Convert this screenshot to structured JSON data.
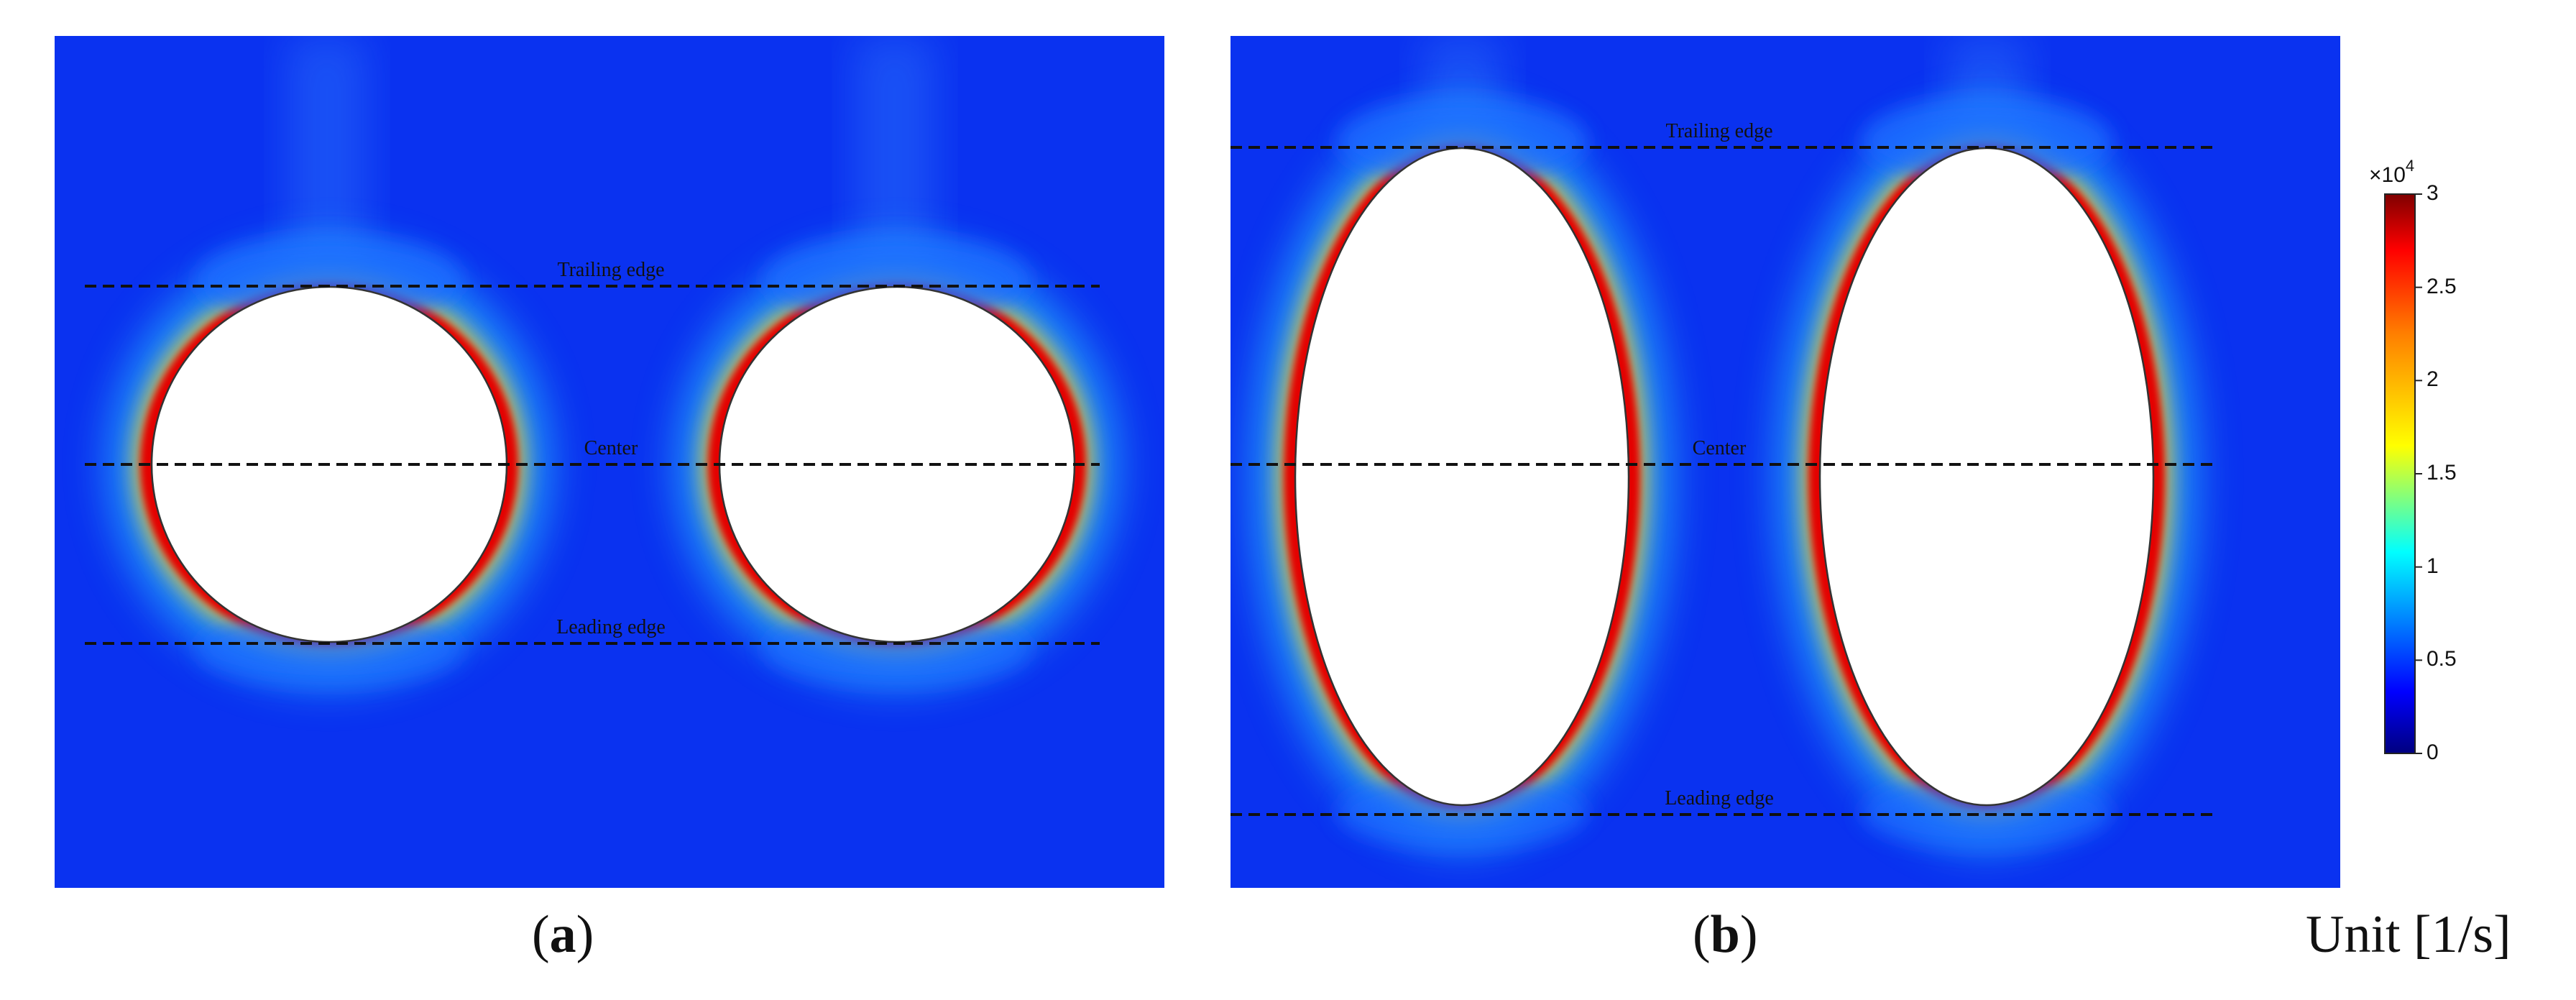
{
  "chart_data": {
    "type": "heatmap",
    "colorscale": "jet",
    "colors": {
      "field_base": "#0a32f0",
      "obstacle": "#ffffff",
      "guide_line": "#111111"
    },
    "colorbar": {
      "min": 0,
      "max": 30000,
      "exponent_label": "×10",
      "exponent_power": "4",
      "ticks": [
        {
          "value": 0,
          "label": "0"
        },
        {
          "value": 0.5,
          "label": "0.5"
        },
        {
          "value": 1,
          "label": "1"
        },
        {
          "value": 1.5,
          "label": "1.5"
        },
        {
          "value": 2,
          "label": "2"
        },
        {
          "value": 2.5,
          "label": "2.5"
        },
        {
          "value": 3,
          "label": "3"
        }
      ],
      "unit": "Unit [1/s]"
    },
    "panels": [
      {
        "id": "a",
        "caption": "a",
        "shape": "circle",
        "obstacle_count": 2,
        "peak_value": 30000,
        "lines": [
          {
            "label": "Trailing edge"
          },
          {
            "label": "Center"
          },
          {
            "label": "Leading edge"
          }
        ]
      },
      {
        "id": "b",
        "caption": "b",
        "shape": "ellipse",
        "obstacle_count": 2,
        "peak_value": 30000,
        "lines": [
          {
            "label": "Trailing edge"
          },
          {
            "label": "Center"
          },
          {
            "label": "Leading edge"
          }
        ]
      }
    ]
  }
}
